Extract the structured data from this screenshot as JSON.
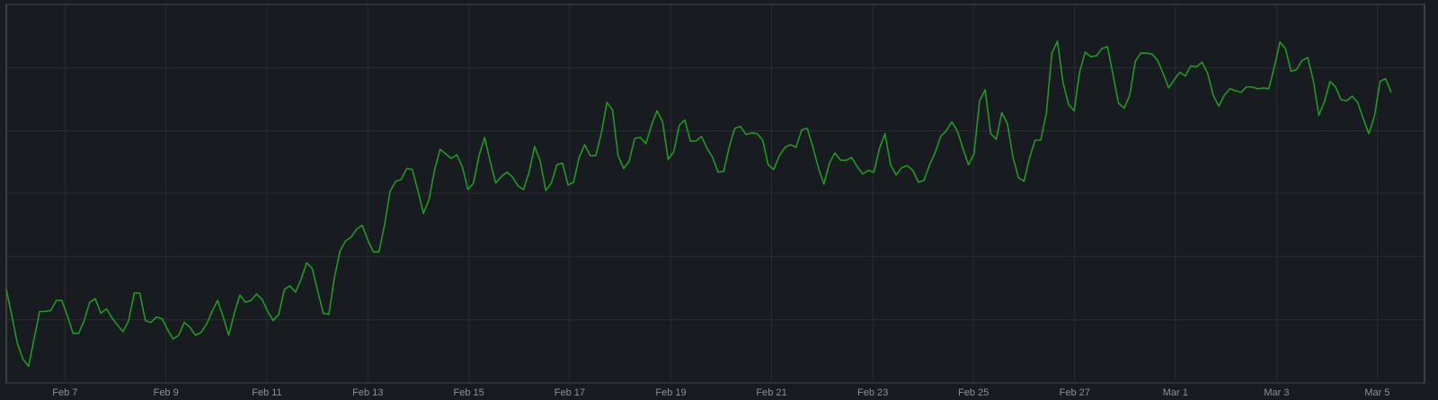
{
  "chart_data": {
    "type": "line",
    "series": [
      {
        "color": "#1f9a22",
        "values": [
          102,
          73,
          43,
          26,
          18,
          48,
          78,
          78,
          79,
          90,
          90,
          73,
          54,
          54,
          68,
          88,
          92,
          76,
          81,
          71,
          63,
          56,
          68,
          98,
          98,
          68,
          66,
          72,
          70,
          58,
          48,
          52,
          66,
          61,
          52,
          55,
          64,
          78,
          90,
          72,
          52,
          76,
          96,
          88,
          90,
          97,
          91,
          78,
          68,
          75,
          102,
          106,
          99,
          113,
          131,
          125,
          100,
          76,
          75,
          115,
          144,
          155,
          159,
          168,
          172,
          156,
          143,
          143,
          172,
          209,
          220,
          222,
          234,
          233,
          210,
          185,
          200,
          232,
          255,
          250,
          245,
          249,
          236,
          211,
          218,
          248,
          268,
          242,
          218,
          225,
          230,
          225,
          215,
          211,
          230,
          258,
          242,
          210,
          218,
          238,
          240,
          216,
          219,
          246,
          260,
          248,
          248,
          273,
          306,
          298,
          248,
          234,
          242,
          267,
          268,
          261,
          281,
          297,
          285,
          244,
          252,
          281,
          287,
          264,
          264,
          269,
          256,
          246,
          230,
          231,
          258,
          278,
          280,
          271,
          273,
          272,
          265,
          238,
          233,
          248,
          257,
          260,
          257,
          276,
          278,
          258,
          235,
          217,
          240,
          251,
          243,
          243,
          246,
          236,
          228,
          232,
          230,
          256,
          272,
          238,
          227,
          235,
          237,
          232,
          219,
          221,
          238,
          251,
          269,
          275,
          285,
          275,
          256,
          238,
          250,
          308,
          320,
          272,
          266,
          295,
          283,
          246,
          224,
          220,
          246,
          265,
          265,
          294,
          360,
          373,
          328,
          304,
          297,
          340,
          361,
          356,
          357,
          365,
          367,
          336,
          305,
          300,
          314,
          351,
          360,
          360,
          359,
          352,
          338,
          322,
          331,
          339,
          335,
          346,
          345,
          350,
          338,
          314,
          302,
          314,
          321,
          319,
          317,
          323,
          323,
          321,
          322,
          321,
          345,
          372,
          365,
          340,
          342,
          352,
          355,
          330,
          292,
          307,
          329,
          323,
          309,
          308,
          313,
          306,
          288,
          272,
          291,
          329,
          332,
          317
        ]
      }
    ],
    "xlim": [
      0,
      255
    ],
    "xticks": [
      {
        "value": 10.56,
        "label": "Feb 7"
      },
      {
        "value": 28.71,
        "label": "Feb 9"
      },
      {
        "value": 46.86,
        "label": "Feb 11"
      },
      {
        "value": 65.0,
        "label": "Feb 13"
      },
      {
        "value": 83.17,
        "label": "Feb 15"
      },
      {
        "value": 101.3,
        "label": "Feb 17"
      },
      {
        "value": 119.5,
        "label": "Feb 19"
      },
      {
        "value": 137.6,
        "label": "Feb 21"
      },
      {
        "value": 155.8,
        "label": "Feb 23"
      },
      {
        "value": 173.9,
        "label": "Feb 25"
      },
      {
        "value": 192.1,
        "label": "Feb 27"
      },
      {
        "value": 210.2,
        "label": "Mar 1"
      },
      {
        "value": 228.4,
        "label": "Mar 3"
      },
      {
        "value": 246.5,
        "label": "Mar 5"
      }
    ],
    "ylim": [
      0,
      413
    ],
    "yticks": [
      0,
      69,
      138,
      207,
      275,
      344,
      413
    ],
    "grid": true
  }
}
